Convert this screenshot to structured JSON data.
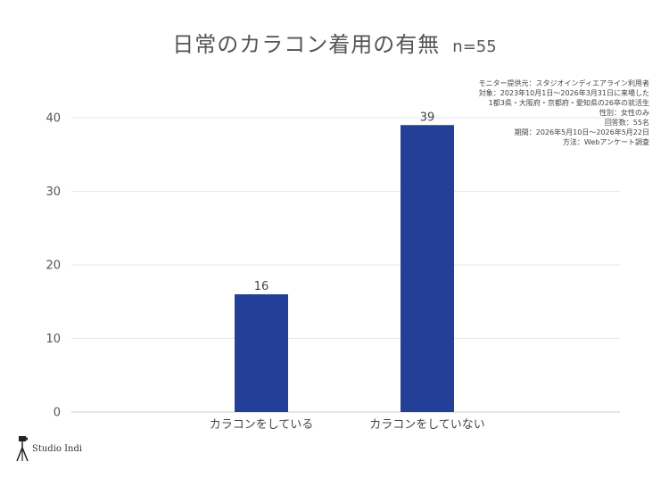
{
  "header": {
    "title": "日常のカラコン着用の有無",
    "subtitle": "n=55"
  },
  "notes": [
    "モニター提供元：スタジオインディエアライン利用者",
    "対象：2023年10月1日〜2026年3月31日に来場した",
    "1都3県・大阪府・京都府・愛知県の26卒の就活生",
    "性別：女性のみ",
    "回答数：55名",
    "期間：2026年5月10日〜2026年5月22日",
    "方法：Webアンケート調査"
  ],
  "logo": {
    "text": "Studio Indi",
    "icon": "camera-tripod-icon"
  },
  "chart_data": {
    "type": "bar",
    "title": "日常のカラコン着用の有無",
    "subtitle": "n=55",
    "categories": [
      "カラコンをしている",
      "カラコンをしていない"
    ],
    "values": [
      16,
      39
    ],
    "ylim": [
      0,
      40
    ],
    "yticks": [
      0,
      10,
      20,
      30,
      40
    ],
    "grid": true,
    "bar_color": "#233f98",
    "xlabel": "",
    "ylabel": ""
  }
}
